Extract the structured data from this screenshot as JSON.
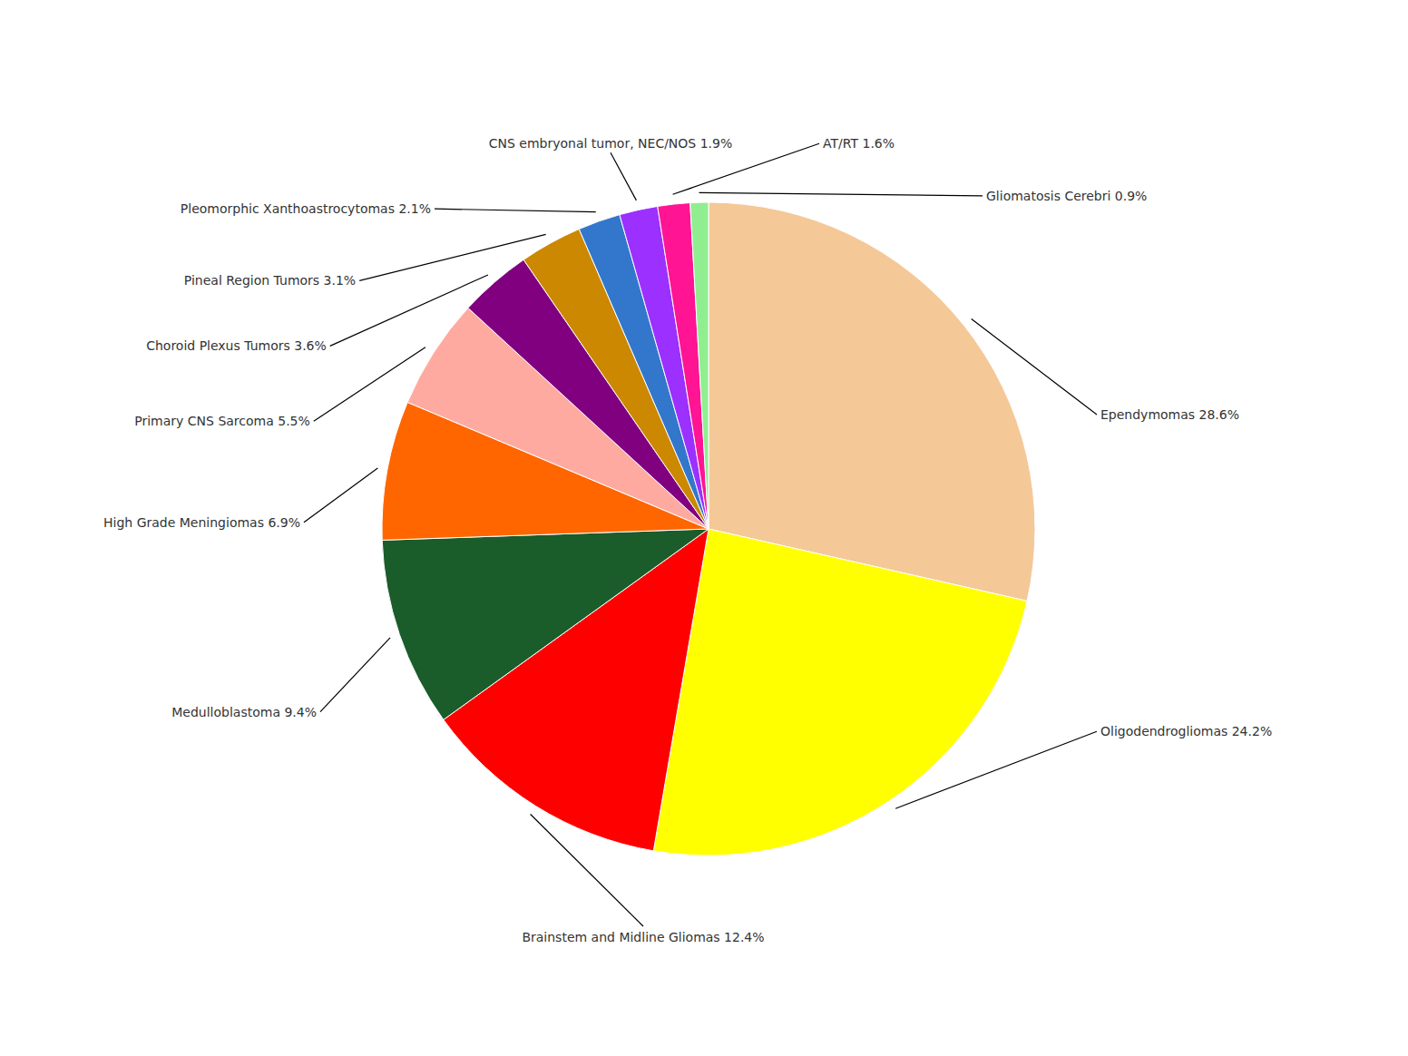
{
  "chart_data": {
    "type": "pie",
    "categories": [
      "Ependymomas 28.6%",
      "Oligodendrogliomas 24.2%",
      "Brainstem and Midline Gliomas 12.4%",
      "Medulloblastoma 9.4%",
      "High Grade Meningiomas 6.9%",
      "Primary CNS Sarcoma 5.5%",
      "Choroid Plexus Tumors 3.6%",
      "Pineal Region Tumors 3.1%",
      "Pleomorphic Xanthoastrocytomas 2.1%",
      "CNS embryonal tumor, NEC/NOS 1.9%",
      "AT/RT 1.6%",
      "Gliomatosis Cerebri 0.9%"
    ],
    "values": [
      28.6,
      24.2,
      12.4,
      9.4,
      6.9,
      5.5,
      3.6,
      3.1,
      2.1,
      1.9,
      1.6,
      0.9
    ],
    "colors": [
      "#F5C898",
      "#FFFF00",
      "#FF0000",
      "#1A5C2A",
      "#FF6600",
      "#FFAAA0",
      "#800080",
      "#CC8800",
      "#3377CC",
      "#9B30FF",
      "#FF1493",
      "#90EE90"
    ]
  }
}
